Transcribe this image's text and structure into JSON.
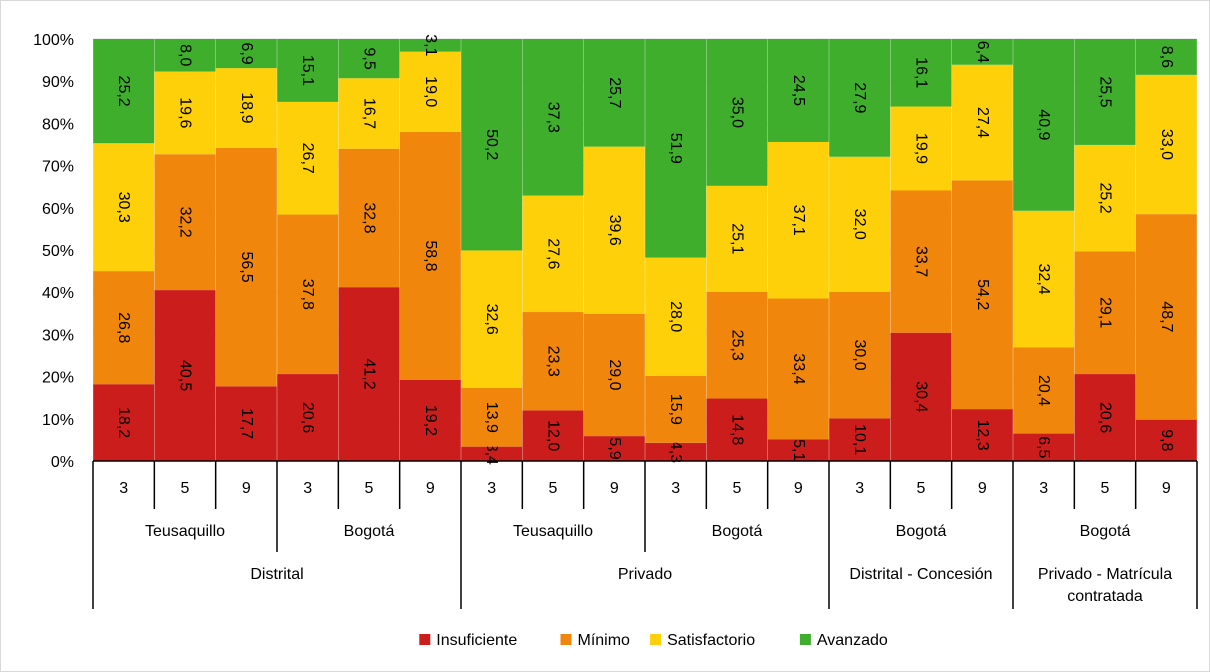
{
  "chart_data": {
    "type": "bar",
    "stacked": true,
    "percent": true,
    "ylim": [
      0,
      100
    ],
    "y_ticks": [
      "0%",
      "10%",
      "20%",
      "30%",
      "40%",
      "50%",
      "60%",
      "70%",
      "80%",
      "90%",
      "100%"
    ],
    "grid": true,
    "legend_position": "bottom",
    "categories": [
      "3",
      "5",
      "9",
      "3",
      "5",
      "9",
      "3",
      "5",
      "9",
      "3",
      "5",
      "9",
      "3",
      "5",
      "9",
      "3",
      "5",
      "9"
    ],
    "level2": [
      {
        "label": "Teusaquillo",
        "span": 3
      },
      {
        "label": "Bogotá",
        "span": 3
      },
      {
        "label": "Teusaquillo",
        "span": 3
      },
      {
        "label": "Bogotá",
        "span": 3
      },
      {
        "label": "Bogotá",
        "span": 3
      },
      {
        "label": "Bogotá",
        "span": 3
      }
    ],
    "level3": [
      {
        "label": "Distrital",
        "span": 6,
        "lines": [
          "Distrital"
        ]
      },
      {
        "label": "Privado",
        "span": 6,
        "lines": [
          "Privado"
        ]
      },
      {
        "label": "Distrital - Concesión",
        "span": 3,
        "lines": [
          "Distrital - Concesión"
        ]
      },
      {
        "label": "Privado - Matrícula contratada",
        "span": 3,
        "lines": [
          "Privado - Matrícula",
          "contratada"
        ]
      }
    ],
    "series": [
      {
        "name": "Insuficiente",
        "color": "#cc1d1d",
        "values": [
          18.2,
          40.5,
          17.7,
          20.6,
          41.2,
          19.2,
          3.4,
          12.0,
          5.9,
          4.3,
          14.8,
          5.1,
          10.1,
          30.4,
          12.3,
          6.5,
          20.6,
          9.8
        ]
      },
      {
        "name": "Mínimo",
        "color": "#f0860b",
        "values": [
          26.8,
          32.2,
          56.5,
          37.8,
          32.8,
          58.8,
          13.9,
          23.3,
          29.0,
          15.9,
          25.3,
          33.4,
          30.0,
          33.7,
          54.2,
          20.4,
          29.1,
          48.7
        ]
      },
      {
        "name": "Satisfactorio",
        "color": "#fdd00a",
        "values": [
          30.3,
          19.6,
          18.9,
          26.7,
          16.7,
          19.0,
          32.6,
          27.6,
          39.6,
          28.0,
          25.1,
          37.1,
          32.0,
          19.9,
          27.4,
          32.4,
          25.2,
          33.0
        ]
      },
      {
        "name": "Avanzado",
        "color": "#3eae2c",
        "values": [
          25.2,
          8.0,
          6.9,
          15.1,
          9.5,
          3.1,
          50.2,
          37.3,
          25.7,
          51.9,
          35.0,
          24.5,
          27.9,
          16.1,
          6.4,
          40.9,
          25.5,
          8.6
        ]
      }
    ],
    "data_labels": [
      [
        "18,2",
        "40,5",
        "17,7",
        "20,6",
        "41,2",
        "19,2",
        "3,4",
        "12,0",
        "5,9",
        "4,3",
        "14,8",
        "5,1",
        "10,1",
        "30,4",
        "12,3",
        "6,5",
        "20,6",
        "9,8"
      ],
      [
        "26,8",
        "32,2",
        "56,5",
        "37,8",
        "32,8",
        "58,8",
        "13,9",
        "23,3",
        "29,0",
        "15,9",
        "25,3",
        "33,4",
        "30,0",
        "33,7",
        "54,2",
        "20,4",
        "29,1",
        "48,7"
      ],
      [
        "30,3",
        "19,6",
        "18,9",
        "26,7",
        "16,7",
        "19,0",
        "32,6",
        "27,6",
        "39,6",
        "28,0",
        "25,1",
        "37,1",
        "32,0",
        "19,9",
        "27,4",
        "32,4",
        "25,2",
        "33,0"
      ],
      [
        "25,2",
        "8,0",
        "6,9",
        "15,1",
        "9,5",
        "3,1",
        "50,2",
        "37,3",
        "25,7",
        "51,9",
        "35,0",
        "24,5",
        "27,9",
        "16,1",
        "6,4",
        "40,9",
        "25,5",
        "8,6"
      ]
    ],
    "title": "",
    "xlabel": "",
    "ylabel": ""
  }
}
